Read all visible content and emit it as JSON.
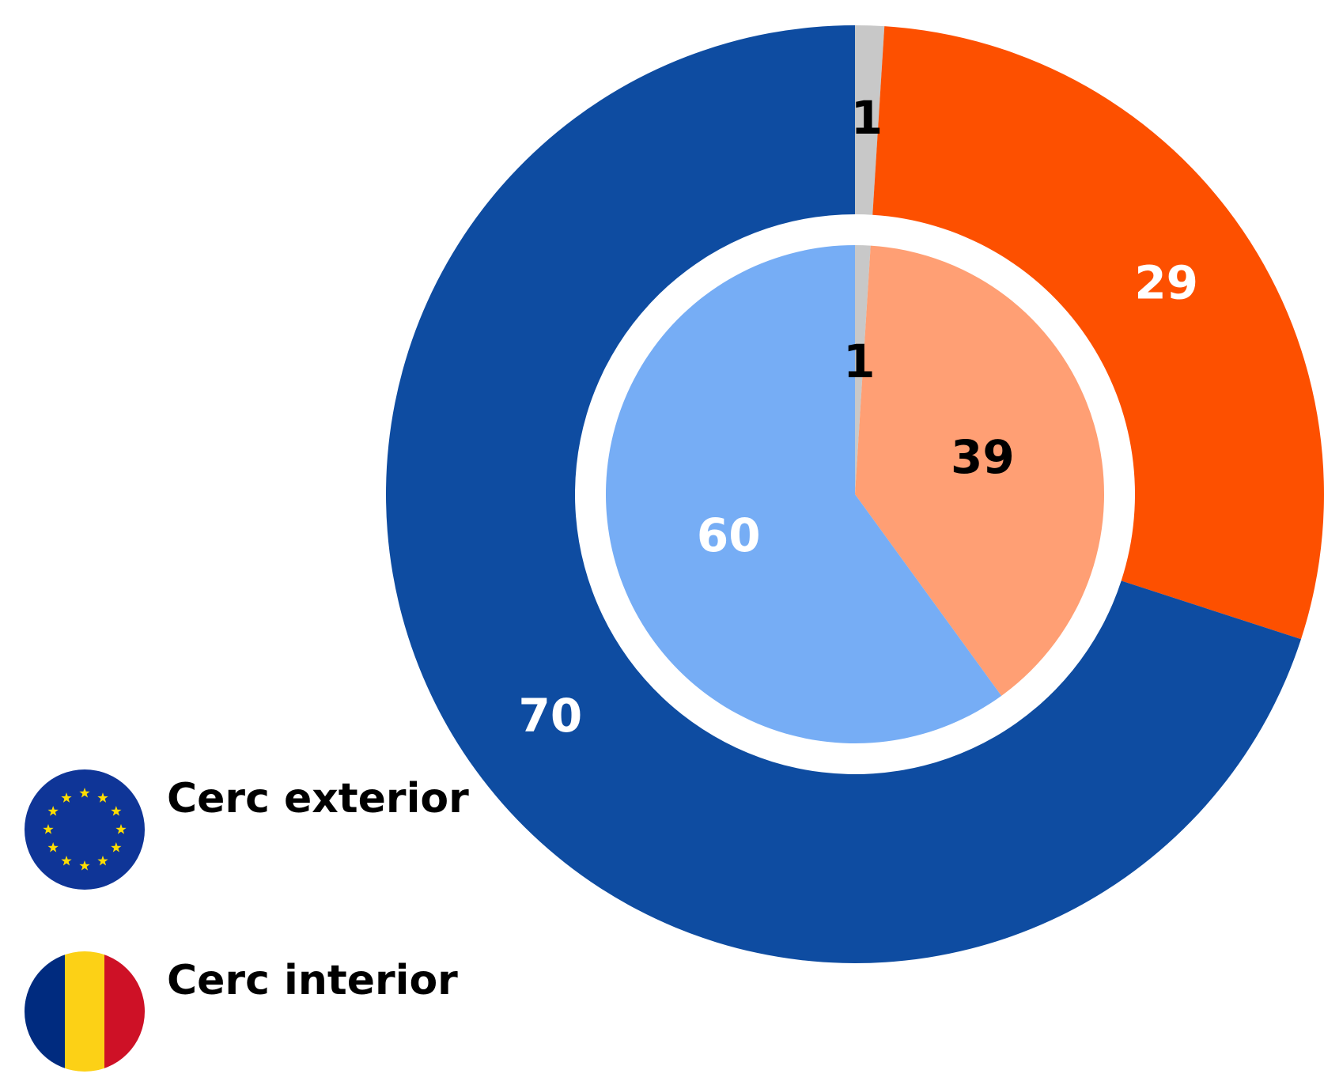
{
  "chart_data": {
    "type": "pie",
    "series": [
      {
        "name": "Cerc exterior",
        "ring": "outer",
        "colors": [
          "#c8c8c8",
          "#fd5000",
          "#0e4ca1"
        ],
        "values": [
          1,
          29,
          70
        ]
      },
      {
        "name": "Cerc interior",
        "ring": "inner",
        "colors": [
          "#c8c8c8",
          "#ff9f74",
          "#76adf5"
        ],
        "values": [
          1,
          39,
          60
        ]
      }
    ],
    "start_angle": 0,
    "direction": "clockwise",
    "legend": "bottom-left"
  }
}
